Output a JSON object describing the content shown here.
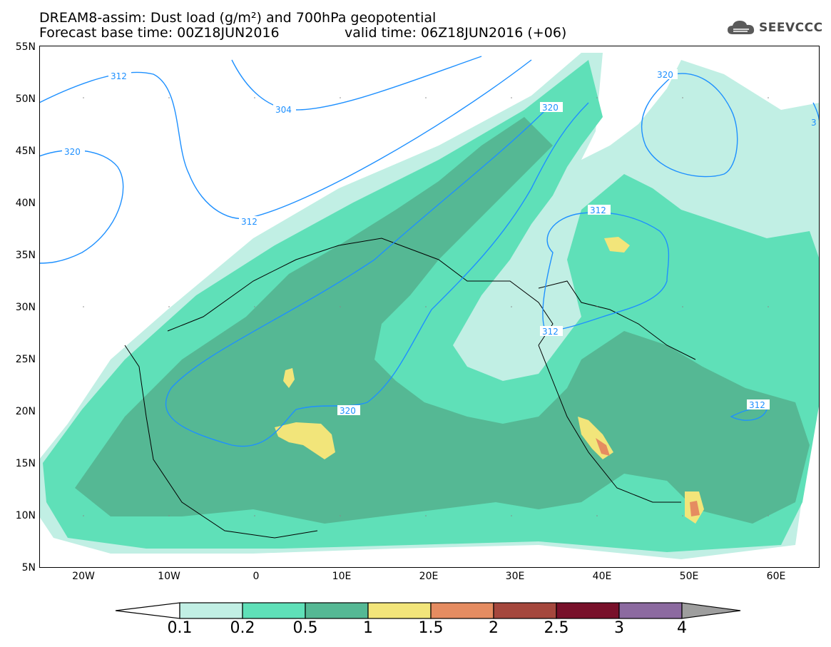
{
  "header": {
    "title_line1": "DREAM8-assim: Dust load (g/m²) and 700hPa geopotential",
    "title_line2_base": "Forecast base time: 00Z18JUN2016",
    "title_line2_valid": "valid time: 06Z18JUN2016 (+06)"
  },
  "logo": {
    "icon": "cloud-logo-icon",
    "text": "SEEVCCC"
  },
  "axes": {
    "lat_labels": [
      "55N",
      "50N",
      "45N",
      "40N",
      "35N",
      "30N",
      "25N",
      "20N",
      "15N",
      "10N",
      "5N"
    ],
    "lon_labels": [
      "20W",
      "10W",
      "0",
      "10E",
      "20E",
      "30E",
      "40E",
      "50E",
      "60E"
    ]
  },
  "contours": {
    "color": "#1e90ff",
    "labels": [
      "312",
      "304",
      "320",
      "320",
      "312",
      "320",
      "312",
      "320",
      "312",
      "312",
      "3"
    ]
  },
  "legend": {
    "levels": [
      "0.1",
      "0.2",
      "0.5",
      "1",
      "1.5",
      "2",
      "2.5",
      "3",
      "4"
    ],
    "colors": [
      "#c1efe4",
      "#5fe0b8",
      "#55b894",
      "#f2e57a",
      "#e58c61",
      "#a5473d",
      "#78102a",
      "#8c6aa0",
      "#9e9e9e"
    ],
    "under_color": "#ffffff"
  }
}
